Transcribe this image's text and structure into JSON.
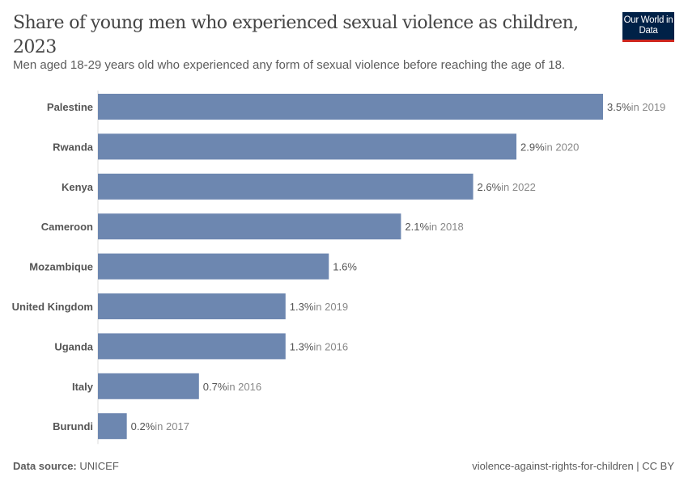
{
  "header": {
    "title": "Share of young men who experienced sexual violence as children, 2023",
    "subtitle": "Men aged 18-29 years old who experienced any form of sexual violence before reaching the age of 18.",
    "logo": "Our World in Data"
  },
  "footer": {
    "source_label": "Data source:",
    "source": "UNICEF",
    "slug": "violence-against-rights-for-children | CC BY"
  },
  "colors": {
    "bar": "#6d87b0",
    "brand": "#002147",
    "accent": "#ce261e"
  },
  "chart_data": {
    "type": "bar",
    "orientation": "horizontal",
    "unit": "%",
    "categories": [
      "Palestine",
      "Rwanda",
      "Kenya",
      "Cameroon",
      "Mozambique",
      "United Kingdom",
      "Uganda",
      "Italy",
      "Burundi"
    ],
    "values": [
      3.5,
      2.9,
      2.6,
      2.1,
      1.6,
      1.3,
      1.3,
      0.7,
      0.2
    ],
    "value_labels": [
      "3.5%",
      "2.9%",
      "2.6%",
      "2.1%",
      "1.6%",
      "1.3%",
      "1.3%",
      "0.7%",
      "0.2%"
    ],
    "year_notes": [
      "in 2019",
      "in 2020",
      "in 2022",
      "in 2018",
      "",
      "in 2019",
      "in 2016",
      "in 2016",
      "in 2017"
    ],
    "grid": false
  }
}
